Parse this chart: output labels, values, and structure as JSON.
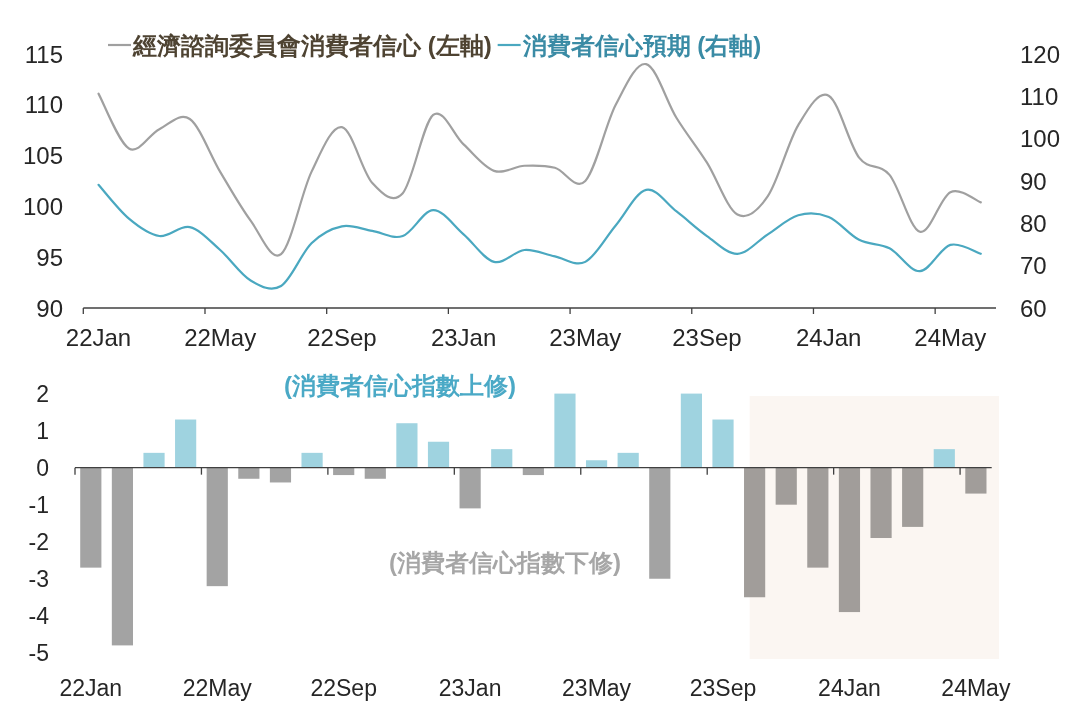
{
  "chart_data": [
    {
      "type": "line",
      "categories": [
        "22Jan",
        null,
        null,
        null,
        "22May",
        null,
        null,
        null,
        "22Sep",
        null,
        null,
        null,
        "23Jan",
        null,
        null,
        null,
        "23May",
        null,
        null,
        null,
        "23Sep",
        null,
        null,
        null,
        "24Jan",
        null,
        null,
        null,
        "24May",
        null
      ],
      "series": [
        {
          "name": "經濟諮詢委員會消費者信心 (左軸)",
          "color": "#a0a0a0",
          "values": [
            111.1,
            105.7,
            107.6,
            108.6,
            103.4,
            98.6,
            95.3,
            103.4,
            107.8,
            102.3,
            101.3,
            109.0,
            106.1,
            103.5,
            104.0,
            103.8,
            102.5,
            110.0,
            114.0,
            108.7,
            104.3,
            99.2,
            101.0,
            108.0,
            110.9,
            104.8,
            103.1,
            97.5,
            101.4,
            100.4
          ]
        },
        {
          "name": "消費者信心預期 (右軸)",
          "color": "#4aa8c0",
          "axis": "y2",
          "values": [
            89.1,
            81.1,
            77.0,
            79.1,
            73.7,
            66.5,
            65.2,
            75.3,
            79.3,
            78.2,
            77.0,
            83.1,
            77.4,
            70.9,
            73.7,
            72.2,
            70.9,
            79.5,
            87.9,
            82.8,
            77.0,
            72.8,
            77.4,
            81.9,
            81.5,
            76.1,
            74.1,
            68.7,
            74.9,
            72.8
          ]
        }
      ],
      "ylim": [
        90,
        115
      ],
      "yticks": [
        90,
        95,
        100,
        105,
        110,
        115
      ],
      "y2lim": [
        60,
        120
      ],
      "y2ticks": [
        60,
        70,
        80,
        90,
        100,
        110,
        120
      ],
      "legend": "top"
    },
    {
      "type": "bar",
      "categories": [
        "22Jan",
        null,
        null,
        null,
        "22May",
        null,
        null,
        null,
        "22Sep",
        null,
        null,
        null,
        "23Jan",
        null,
        null,
        null,
        "23May",
        null,
        null,
        null,
        "23Sep",
        null,
        null,
        null,
        "24Jan",
        null,
        null,
        null,
        "24May"
      ],
      "values": [
        -2.7,
        -4.8,
        0.4,
        1.3,
        -3.2,
        -0.3,
        -0.4,
        0.4,
        -0.2,
        -0.3,
        1.2,
        0.7,
        -1.1,
        0.5,
        -0.2,
        2.0,
        0.2,
        0.4,
        -3.0,
        2.0,
        1.3,
        -3.5,
        -1.0,
        -2.7,
        -3.9,
        -1.9,
        -1.6,
        0.5,
        -0.7
      ],
      "colors": [
        "#a3a3a3",
        "#a3a3a3",
        "#9fd3e0",
        "#9fd3e0",
        "#a3a3a3",
        "#a3a3a3",
        "#a3a3a3",
        "#9fd3e0",
        "#a3a3a3",
        "#a3a3a3",
        "#9fd3e0",
        "#9fd3e0",
        "#a3a3a3",
        "#9fd3e0",
        "#a3a3a3",
        "#9fd3e0",
        "#9fd3e0",
        "#9fd3e0",
        "#a3a3a3",
        "#9fd3e0",
        "#9fd3e0",
        "#a19d9a",
        "#a19d9a",
        "#a19d9a",
        "#a19d9a",
        "#a19d9a",
        "#a19d9a",
        "#9fd3e0",
        "#a19d9a"
      ],
      "ylim": [
        -5,
        2
      ],
      "yticks": [
        -5,
        -4,
        -3,
        -2,
        -1,
        0,
        1,
        2
      ],
      "annotations": [
        "(消費者信心指數上修)",
        "(消費者信心指數下修)"
      ]
    }
  ]
}
